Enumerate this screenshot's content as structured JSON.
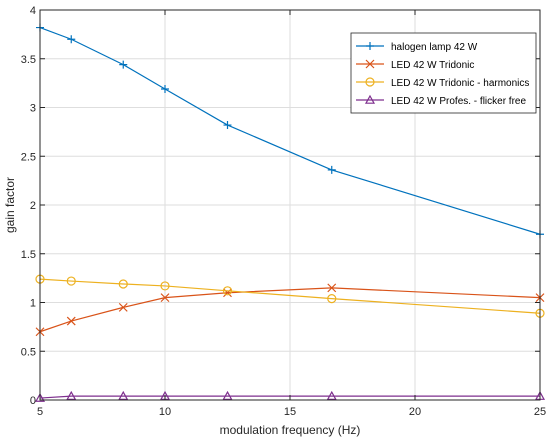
{
  "chart_data": {
    "type": "line",
    "title": "",
    "xlabel": "modulation frequency (Hz)",
    "ylabel": "gain factor",
    "xlim": [
      5,
      25
    ],
    "ylim": [
      0,
      4
    ],
    "xticks": [
      5,
      10,
      15,
      20,
      25
    ],
    "yticks": [
      0,
      0.5,
      1,
      1.5,
      2,
      2.5,
      3,
      3.5,
      4
    ],
    "x_tick_labels": [
      "5",
      "10",
      "15",
      "20",
      "25"
    ],
    "y_tick_labels": [
      "0",
      "0.5",
      "1",
      "1.5",
      "2",
      "2.5",
      "3",
      "3.5",
      "4"
    ],
    "grid": true,
    "legend_position": "top-right",
    "series": [
      {
        "name": "halogen lamp 42 W",
        "color": "#0072BD",
        "marker": "plus",
        "x": [
          5,
          6.25,
          8.33,
          10,
          12.5,
          16.67,
          25
        ],
        "y": [
          3.82,
          3.7,
          3.44,
          3.19,
          2.82,
          2.36,
          1.7
        ]
      },
      {
        "name": "LED 42 W Tridonic",
        "color": "#D95319",
        "marker": "x",
        "x": [
          5,
          6.25,
          8.33,
          10,
          12.5,
          16.67,
          25
        ],
        "y": [
          0.7,
          0.81,
          0.95,
          1.05,
          1.1,
          1.15,
          1.05
        ]
      },
      {
        "name": "LED 42 W Tridonic - harmonics",
        "color": "#EDB120",
        "marker": "circle",
        "x": [
          5,
          6.25,
          8.33,
          10,
          12.5,
          16.67,
          25
        ],
        "y": [
          1.24,
          1.22,
          1.19,
          1.17,
          1.12,
          1.04,
          0.89
        ]
      },
      {
        "name": "LED 42 W Profes. - flicker free",
        "color": "#7E2F8E",
        "marker": "triangle",
        "x": [
          5,
          6.25,
          8.33,
          10,
          12.5,
          16.67,
          25
        ],
        "y": [
          0.02,
          0.04,
          0.04,
          0.04,
          0.04,
          0.04,
          0.04
        ]
      }
    ]
  }
}
